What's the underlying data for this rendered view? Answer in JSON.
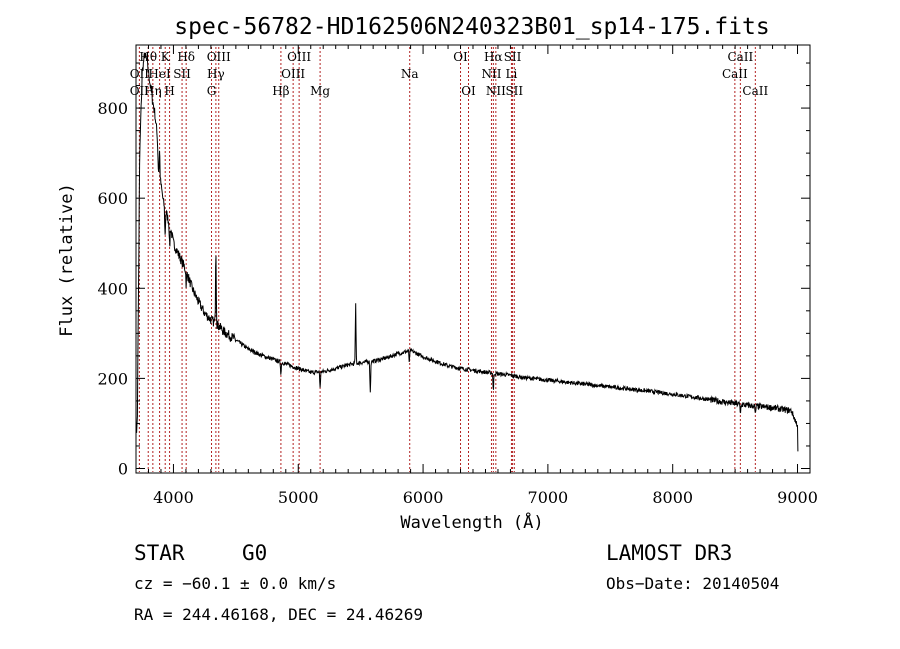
{
  "chart_data": {
    "type": "line",
    "title": "spec-56782-HD162506N240323B01_sp14-175.fits",
    "xlabel": "Wavelength (Å)",
    "ylabel": "Flux (relative)",
    "xlim": [
      3700,
      9100
    ],
    "ylim": [
      -10,
      940
    ],
    "xticks": [
      4000,
      5000,
      6000,
      7000,
      8000,
      9000
    ],
    "yticks": [
      0,
      200,
      400,
      600,
      800
    ],
    "grid": false,
    "line_color": "#000000",
    "marker_color": "#b22222",
    "continuum": [
      [
        3710,
        90
      ],
      [
        3730,
        700
      ],
      [
        3750,
        880
      ],
      [
        3770,
        920
      ],
      [
        3790,
        900
      ],
      [
        3810,
        860
      ],
      [
        3830,
        820
      ],
      [
        3850,
        790
      ],
      [
        3870,
        740
      ],
      [
        3880,
        660
      ],
      [
        3900,
        630
      ],
      [
        3920,
        590
      ],
      [
        3950,
        560
      ],
      [
        3980,
        530
      ],
      [
        4000,
        500
      ],
      [
        4050,
        470
      ],
      [
        4100,
        440
      ],
      [
        4150,
        400
      ],
      [
        4200,
        370
      ],
      [
        4250,
        345
      ],
      [
        4300,
        330
      ],
      [
        4350,
        320
      ],
      [
        4400,
        305
      ],
      [
        4500,
        285
      ],
      [
        4600,
        265
      ],
      [
        4700,
        252
      ],
      [
        4800,
        242
      ],
      [
        4900,
        232
      ],
      [
        5000,
        222
      ],
      [
        5100,
        213
      ],
      [
        5200,
        215
      ],
      [
        5300,
        222
      ],
      [
        5400,
        230
      ],
      [
        5500,
        235
      ],
      [
        5600,
        238
      ],
      [
        5700,
        245
      ],
      [
        5800,
        255
      ],
      [
        5900,
        262
      ],
      [
        6000,
        248
      ],
      [
        6100,
        238
      ],
      [
        6200,
        228
      ],
      [
        6300,
        222
      ],
      [
        6400,
        218
      ],
      [
        6500,
        214
      ],
      [
        6600,
        210
      ],
      [
        6700,
        207
      ],
      [
        6800,
        202
      ],
      [
        7000,
        196
      ],
      [
        7200,
        190
      ],
      [
        7400,
        184
      ],
      [
        7600,
        178
      ],
      [
        7800,
        172
      ],
      [
        8000,
        165
      ],
      [
        8200,
        157
      ],
      [
        8400,
        148
      ],
      [
        8600,
        140
      ],
      [
        8800,
        135
      ],
      [
        8950,
        128
      ],
      [
        9000,
        95
      ],
      [
        9005,
        0
      ]
    ],
    "features": [
      [
        3889,
        60
      ],
      [
        3933,
        -60
      ],
      [
        3970,
        -50
      ],
      [
        4102,
        -30
      ],
      [
        4340,
        170
      ],
      [
        4861,
        -25
      ],
      [
        5175,
        -35
      ],
      [
        5460,
        130
      ],
      [
        5577,
        -70
      ],
      [
        5890,
        -25
      ],
      [
        6563,
        -40
      ],
      [
        8542,
        -20
      ],
      [
        8662,
        -20
      ]
    ],
    "lines": [
      {
        "label": "Hθ",
        "wave": 3798,
        "row": 1
      },
      {
        "label": "OII",
        "wave": 3727,
        "row": 2
      },
      {
        "label": "Hη",
        "wave": 3835,
        "row": 3
      },
      {
        "label": "OII",
        "wave": 3727,
        "row": 3
      },
      {
        "label": "K",
        "wave": 3934,
        "row": 1
      },
      {
        "label": "HeI",
        "wave": 3889,
        "row": 2
      },
      {
        "label": "H",
        "wave": 3969,
        "row": 3
      },
      {
        "label": "SII",
        "wave": 4069,
        "row": 2
      },
      {
        "label": "Hδ",
        "wave": 4102,
        "row": 1
      },
      {
        "label": "OIII",
        "wave": 4363,
        "row": 1
      },
      {
        "label": "Hγ",
        "wave": 4340,
        "row": 2
      },
      {
        "label": "G",
        "wave": 4305,
        "row": 3
      },
      {
        "label": "Hβ",
        "wave": 4861,
        "row": 3
      },
      {
        "label": "OIII",
        "wave": 5007,
        "row": 1
      },
      {
        "label": "OIII",
        "wave": 4959,
        "row": 2
      },
      {
        "label": "Mg",
        "wave": 5175,
        "row": 3
      },
      {
        "label": "Na",
        "wave": 5893,
        "row": 2
      },
      {
        "label": "OI",
        "wave": 6300,
        "row": 1
      },
      {
        "label": "OI",
        "wave": 6364,
        "row": 3
      },
      {
        "label": "Hα",
        "wave": 6563,
        "row": 1
      },
      {
        "label": "NII",
        "wave": 6548,
        "row": 2
      },
      {
        "label": "NII",
        "wave": 6583,
        "row": 3
      },
      {
        "label": "SII",
        "wave": 6717,
        "row": 1
      },
      {
        "label": "Li",
        "wave": 6708,
        "row": 2
      },
      {
        "label": "SII",
        "wave": 6731,
        "row": 3
      },
      {
        "label": "CaII",
        "wave": 8542,
        "row": 1
      },
      {
        "label": "CaII",
        "wave": 8498,
        "row": 2
      },
      {
        "label": "CaII",
        "wave": 8662,
        "row": 3
      }
    ]
  },
  "info": {
    "class": "STAR",
    "subclass": "G0",
    "survey": "LAMOST DR3",
    "cz": "cz = −60.1 ± 0.0 km/s",
    "obs_date": "Obs−Date: 20140504",
    "radec": "RA = 244.46168, DEC =  24.46269"
  }
}
